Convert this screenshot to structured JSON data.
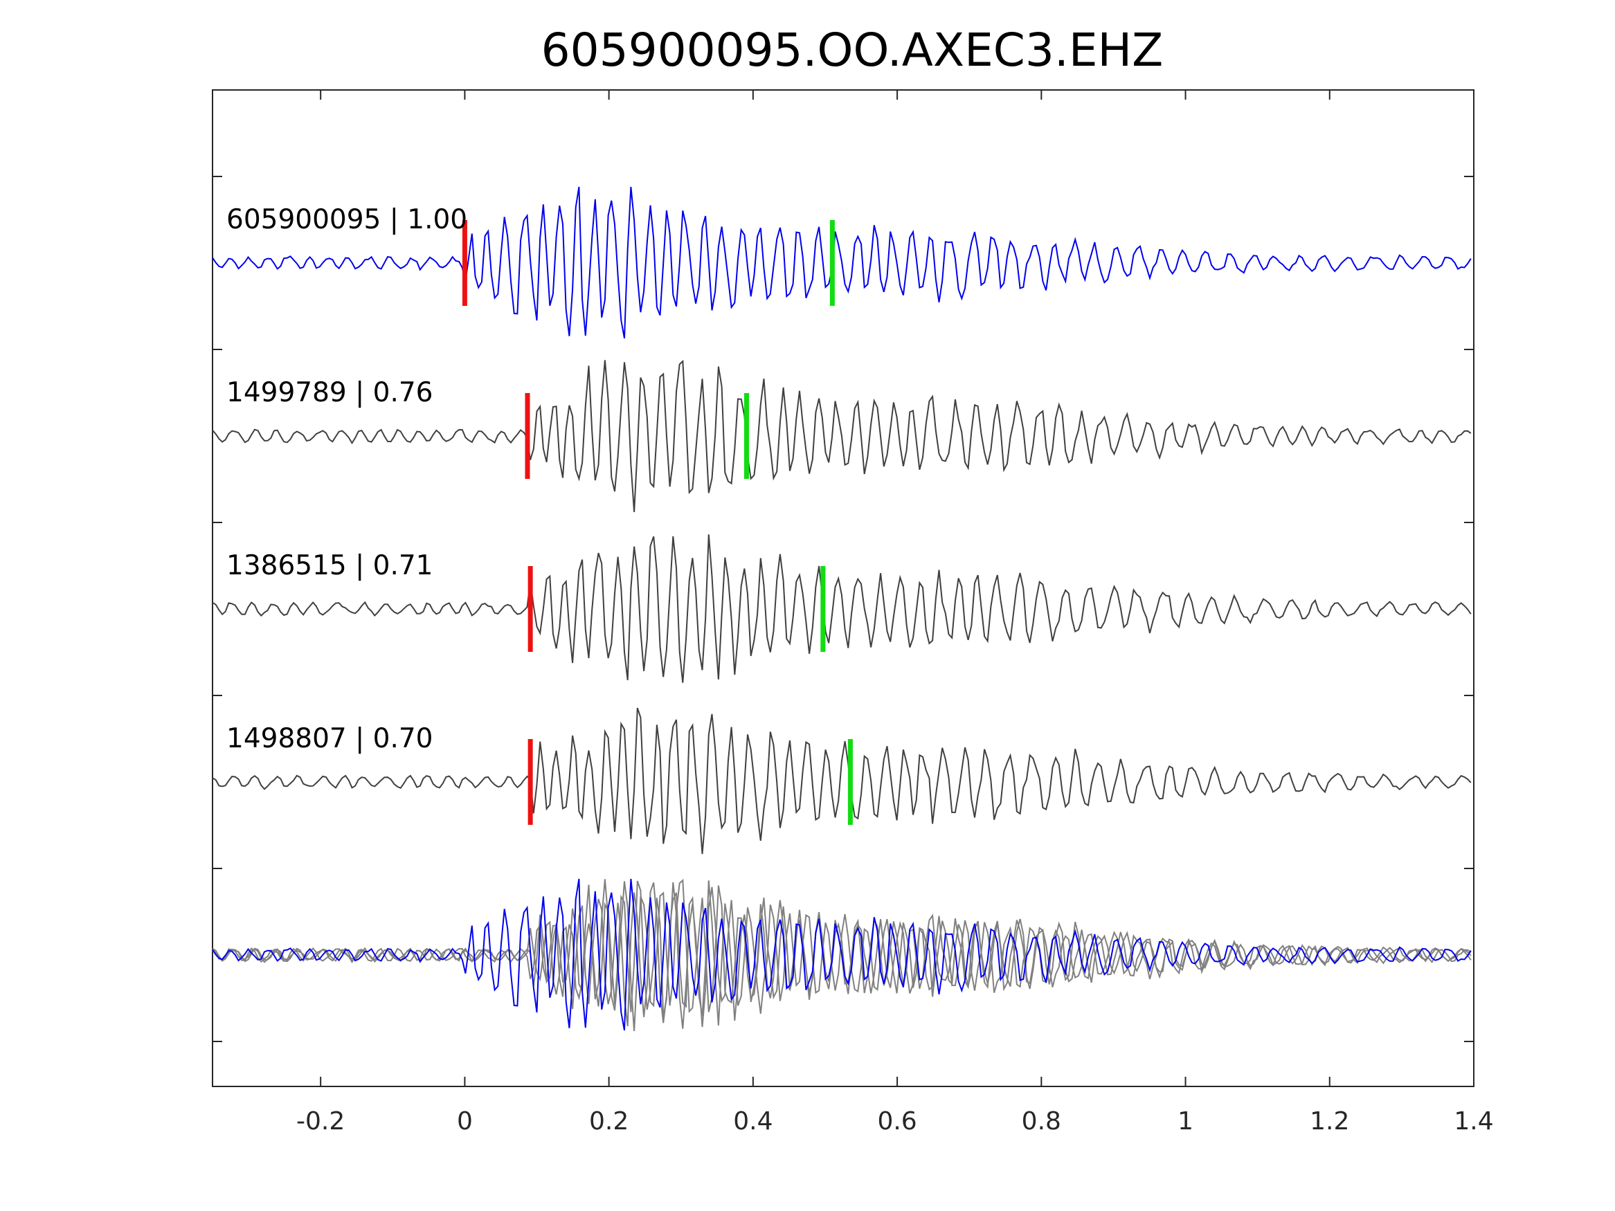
{
  "chart_data": {
    "type": "line",
    "title": "605900095.OO.AXEC3.EHZ",
    "xlabel": "",
    "ylabel": "",
    "xlim": [
      -0.35,
      1.4
    ],
    "xticks": [
      {
        "value": -0.2,
        "label": "-0.2"
      },
      {
        "value": 0,
        "label": "0"
      },
      {
        "value": 0.2,
        "label": "0.2"
      },
      {
        "value": 0.4,
        "label": "0.4"
      },
      {
        "value": 0.6,
        "label": "0.6"
      },
      {
        "value": 0.8,
        "label": "0.8"
      },
      {
        "value": 1,
        "label": "1"
      },
      {
        "value": 1.2,
        "label": "1.2"
      },
      {
        "value": 1.4,
        "label": "1.4"
      }
    ],
    "ytick_count": 6,
    "grid": false,
    "colors": {
      "template": "#0000ee",
      "match": "#404040",
      "overlay_match": "#808080",
      "p_pick": "#ee1111",
      "s_pick": "#11dd11"
    },
    "traces": [
      {
        "label": "605900095 | 1.00",
        "id": "605900095",
        "cc": 1.0,
        "role": "template",
        "p_pick": 0.0,
        "s_pick": 0.51,
        "onset": 0.0,
        "peak_amp": 1.0,
        "seed": 11
      },
      {
        "label": "1499789 | 0.76",
        "id": "1499789",
        "cc": 0.76,
        "role": "match",
        "p_pick": 0.087,
        "s_pick": 0.391,
        "onset": 0.087,
        "peak_amp": 1.0,
        "seed": 23
      },
      {
        "label": "1386515 | 0.71",
        "id": "1386515",
        "cc": 0.71,
        "role": "match",
        "p_pick": 0.091,
        "s_pick": 0.497,
        "onset": 0.091,
        "peak_amp": 1.0,
        "seed": 37
      },
      {
        "label": "1498807 | 0.70",
        "id": "1498807",
        "cc": 0.7,
        "role": "match",
        "p_pick": 0.091,
        "s_pick": 0.535,
        "onset": 0.091,
        "peak_amp": 1.0,
        "seed": 53
      }
    ],
    "overlay": {
      "traces": [
        "605900095",
        "1499789",
        "1386515",
        "1498807"
      ]
    }
  }
}
